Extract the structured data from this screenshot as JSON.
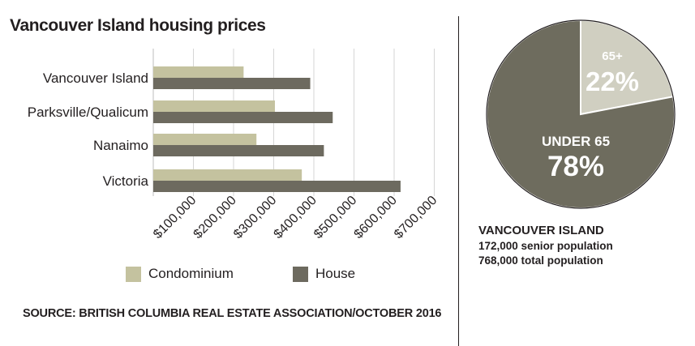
{
  "title": "Vancouver Island housing prices",
  "source": "SOURCE: BRITISH COLUMBIA REAL ESTATE ASSOCIATION/OCTOBER 2016",
  "colors": {
    "condominium": "#c4c29f",
    "house": "#6d6a5f",
    "pie_small": "#d0cfc1",
    "pie_large": "#6e6c5e"
  },
  "chart_data": [
    {
      "type": "bar",
      "orientation": "horizontal",
      "title": "Vancouver Island housing prices",
      "categories": [
        "Vancouver Island",
        "Parksville/Qualicum",
        "Nanaimo",
        "Victoria"
      ],
      "series": [
        {
          "name": "Condominium",
          "values": [
            225000,
            303000,
            257000,
            370000
          ]
        },
        {
          "name": "House",
          "values": [
            391000,
            447000,
            425000,
            616000
          ]
        }
      ],
      "xticks": [
        "$100,000",
        "$200,000",
        "$300,000",
        "$400,000",
        "$500,000",
        "$600,000",
        "$700,000"
      ],
      "xlim": [
        0,
        700000
      ],
      "grid": true,
      "legend": "bottom"
    },
    {
      "type": "pie",
      "labels": [
        "65+",
        "UNDER 65"
      ],
      "values": [
        22,
        78
      ],
      "value_labels": [
        "22%",
        "78%"
      ]
    }
  ],
  "pie_info": {
    "region": "VANCOUVER ISLAND",
    "line1": "172,000 senior population",
    "line2": "768,000 total population"
  }
}
